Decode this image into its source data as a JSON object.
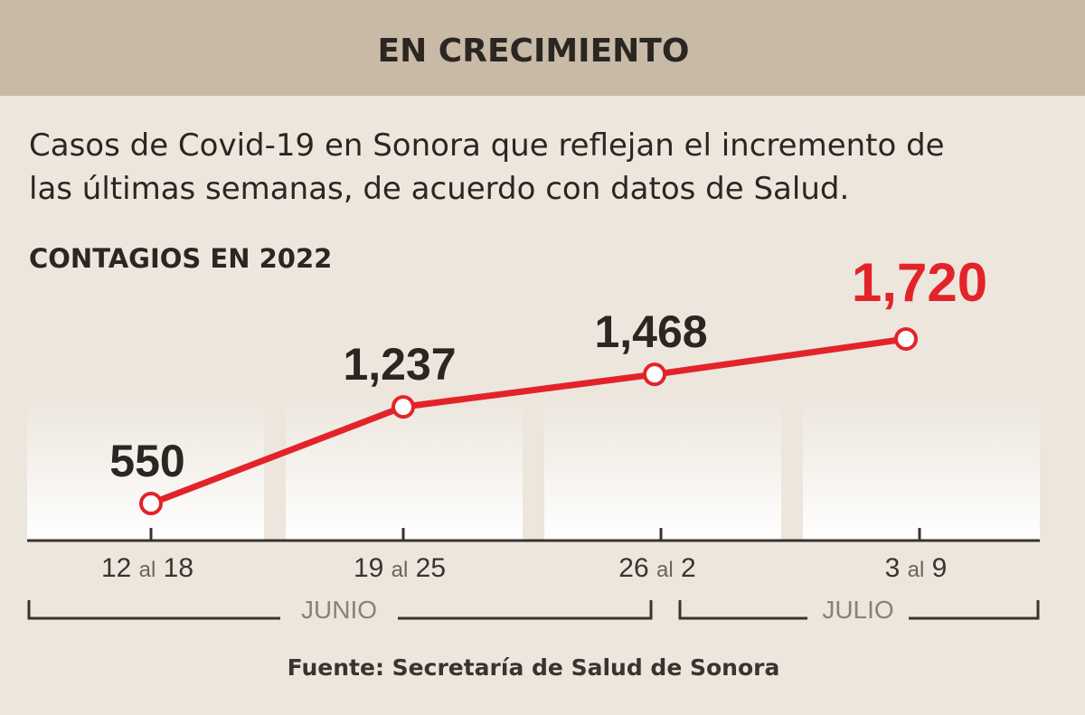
{
  "header": {
    "title": "EN CRECIMIENTO"
  },
  "subtitle": {
    "line1": "Casos de Covid-19 en Sonora que reflejan el incremento de",
    "line2": "las últimas semanas, de acuerdo con datos de Salud."
  },
  "chart_data": {
    "type": "line",
    "title": "CONTAGIOS EN 2022",
    "categories": [
      "12 al 18",
      "19 al 25",
      "26 al 2",
      "3 al 9"
    ],
    "tick_parts": [
      [
        "12",
        "al",
        "18"
      ],
      [
        "19",
        "al",
        "25"
      ],
      [
        "26",
        "al",
        "2"
      ],
      [
        "3",
        "al",
        "9"
      ]
    ],
    "values": [
      550,
      1237,
      1468,
      1720
    ],
    "value_labels": [
      "550",
      "1,237",
      "1,468",
      "1,720"
    ],
    "highlight_index": 3,
    "months": [
      {
        "label": "JUNIO"
      },
      {
        "label": "JULIO"
      }
    ],
    "xlabel": "",
    "ylabel": "",
    "colors": {
      "line": "#e3232a",
      "highlight": "#e3232a",
      "header_band": "#c8baa6",
      "background": "#ece6dd"
    }
  },
  "source": "Fuente: Secretaría de Salud de Sonora"
}
